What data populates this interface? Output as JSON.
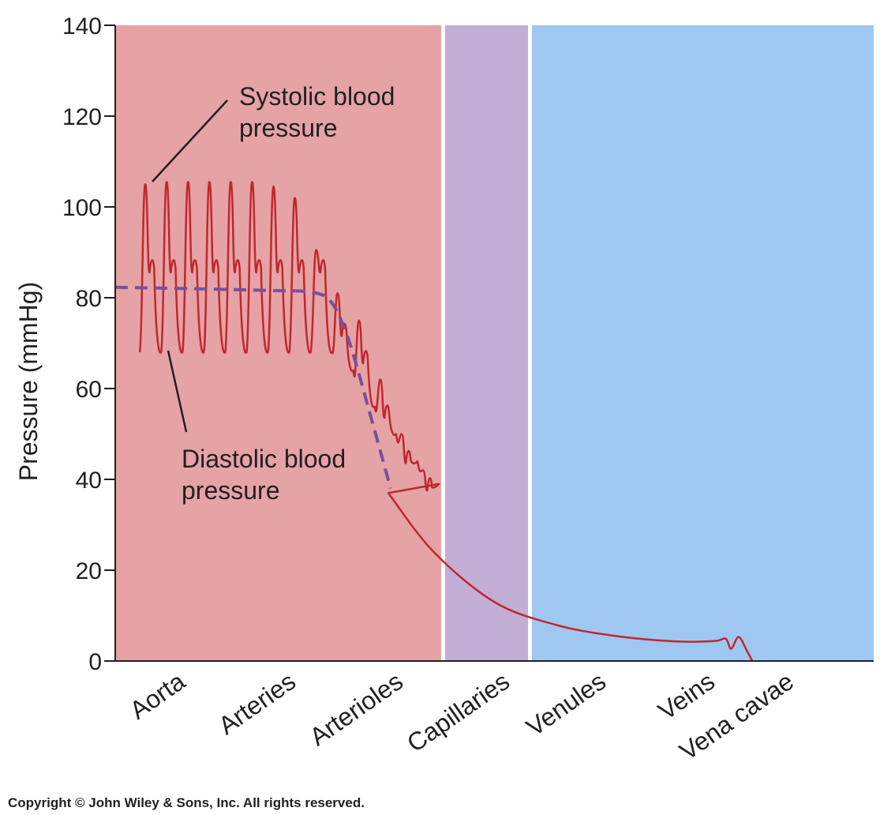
{
  "chart_data": {
    "type": "line",
    "title": "",
    "ylabel": "Pressure (mmHg)",
    "xlabel": "",
    "ylim": [
      0,
      140
    ],
    "yticks": [
      0,
      20,
      40,
      60,
      80,
      100,
      120,
      140
    ],
    "categories": [
      "Aorta",
      "Arteries",
      "Arterioles",
      "Capillaries",
      "Venules",
      "Veins",
      "Vena cavae"
    ],
    "regions": [
      {
        "name": "arterial",
        "color": "#e5a3a6"
      },
      {
        "name": "capillary",
        "color": "#c3aed6"
      },
      {
        "name": "venous",
        "color": "#9ec8f2"
      }
    ],
    "annotations": [
      {
        "line1": "Systolic blood",
        "line2": "pressure"
      },
      {
        "line1": "Diastolic blood",
        "line2": "pressure"
      }
    ],
    "series": [
      {
        "type": "pulsatile",
        "color": "#c1272d",
        "start_value": 68,
        "pulses": [
          {
            "sys": 105,
            "dia": 68,
            "notch": 88
          },
          {
            "sys": 105.5,
            "dia": 68,
            "notch": 88
          },
          {
            "sys": 105.5,
            "dia": 68,
            "notch": 88
          },
          {
            "sys": 105.5,
            "dia": 68,
            "notch": 88
          },
          {
            "sys": 105.5,
            "dia": 68,
            "notch": 88
          },
          {
            "sys": 105.5,
            "dia": 68,
            "notch": 88
          },
          {
            "sys": 104.5,
            "dia": 68,
            "notch": 88
          },
          {
            "sys": 102,
            "dia": 68,
            "notch": 88
          },
          {
            "sys": 90.5,
            "dia": 68,
            "notch": 88
          },
          {
            "sys": 81,
            "dia": 64,
            "notch": 74
          },
          {
            "sys": 75,
            "dia": 56,
            "notch": 68
          },
          {
            "sys": 62,
            "dia": 50,
            "notch": 56
          },
          {
            "sys": 50,
            "dia": 44,
            "notch": 46
          },
          {
            "sys": 42,
            "dia": 39,
            "notch": 40
          }
        ],
        "tail": [
          {
            "x": 0.36,
            "y": 37
          },
          {
            "x": 0.42,
            "y": 24
          },
          {
            "x": 0.5,
            "y": 13
          },
          {
            "x": 0.58,
            "y": 8
          },
          {
            "x": 0.66,
            "y": 5.5
          },
          {
            "x": 0.74,
            "y": 4.3
          },
          {
            "x": 0.79,
            "y": 4.4
          },
          {
            "x": 0.805,
            "y": 4.9
          },
          {
            "x": 0.812,
            "y": 2.7
          },
          {
            "x": 0.822,
            "y": 5.3
          },
          {
            "x": 0.832,
            "y": 2.5
          },
          {
            "x": 0.84,
            "y": 0
          }
        ]
      },
      {
        "type": "dashed",
        "color": "#7a4e9a",
        "points": [
          {
            "x": 0.0,
            "y": 82.3
          },
          {
            "x": 0.1,
            "y": 82.0
          },
          {
            "x": 0.2,
            "y": 81.6
          },
          {
            "x": 0.26,
            "y": 81.2
          },
          {
            "x": 0.285,
            "y": 79
          },
          {
            "x": 0.305,
            "y": 72
          },
          {
            "x": 0.32,
            "y": 64
          },
          {
            "x": 0.335,
            "y": 55
          },
          {
            "x": 0.35,
            "y": 46
          },
          {
            "x": 0.363,
            "y": 38
          }
        ]
      }
    ]
  },
  "copyright": "Copyright © John Wiley & Sons, Inc. All rights reserved."
}
